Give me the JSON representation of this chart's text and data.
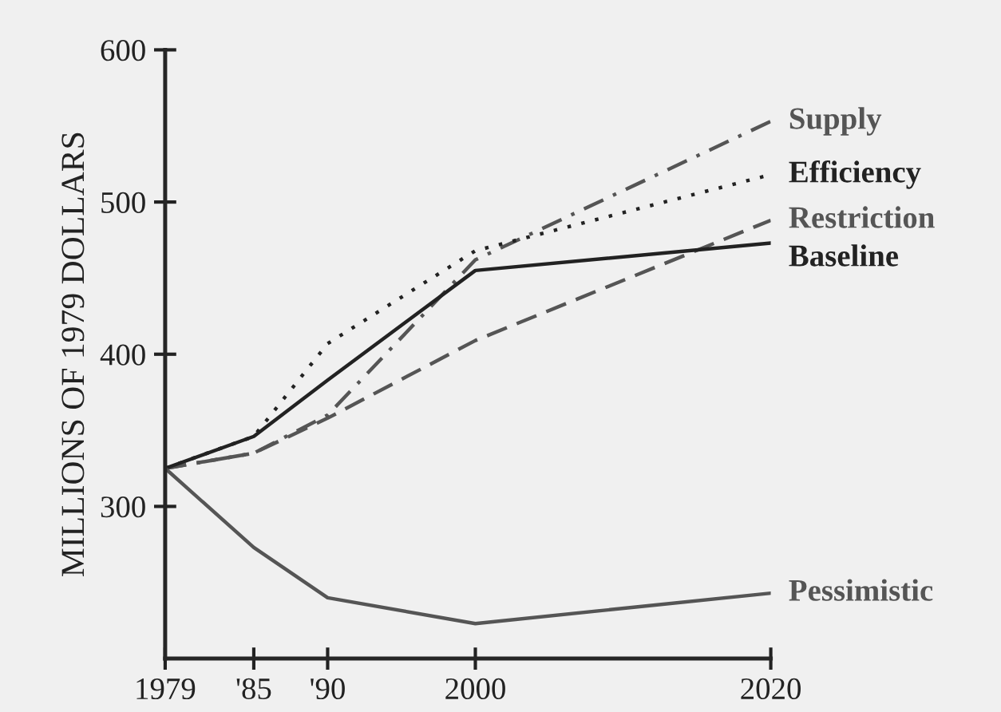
{
  "chart_data": {
    "type": "line",
    "ylabel": "MILLIONS OF 1979 DOLLARS",
    "x": [
      1979,
      1985,
      1990,
      2000,
      2020
    ],
    "xlim": [
      1979,
      2020
    ],
    "xticks": [
      {
        "value": 1979,
        "label": "1979"
      },
      {
        "value": 1985,
        "label": "'85"
      },
      {
        "value": 1990,
        "label": "'90"
      },
      {
        "value": 2000,
        "label": "2000"
      },
      {
        "value": 2020,
        "label": "2020"
      }
    ],
    "ylim": [
      200,
      600
    ],
    "yticks": [
      300,
      400,
      500,
      600
    ],
    "grid": false,
    "legend": false,
    "marker": "none",
    "series": [
      {
        "name": "Supply",
        "color": "#555555",
        "line_style": "dashdot",
        "values": [
          325,
          335,
          360,
          462,
          553
        ]
      },
      {
        "name": "Efficiency",
        "color": "#222222",
        "line_style": "dotted",
        "values": [
          325,
          346,
          407,
          468,
          518
        ]
      },
      {
        "name": "Restriction",
        "color": "#555555",
        "line_style": "dashed",
        "values": [
          325,
          335,
          358,
          409,
          488
        ]
      },
      {
        "name": "Baseline",
        "color": "#222222",
        "line_style": "solid",
        "values": [
          325,
          346,
          383,
          455,
          473
        ]
      },
      {
        "name": "Pessimistic",
        "color": "#555555",
        "line_style": "solid",
        "values": [
          325,
          273,
          240,
          223,
          243
        ]
      }
    ]
  }
}
